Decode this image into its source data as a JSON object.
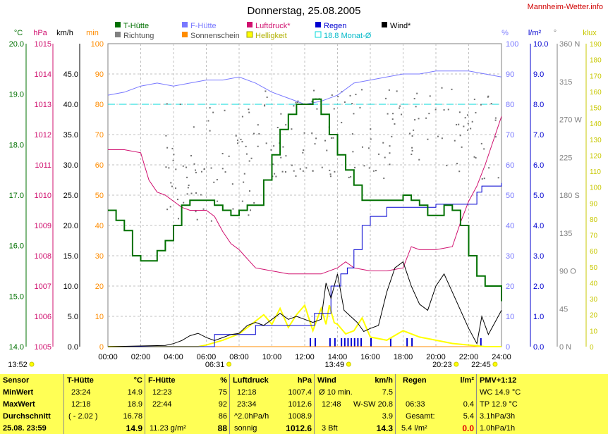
{
  "title": "Donnerstag, 25.08.2005",
  "site": "Mannheim-Wetter.info",
  "colors": {
    "temp": "#007000",
    "humid": "#7878ff",
    "pressure": "#d0106f",
    "rain": "#0000d0",
    "wind": "#000000",
    "direction": "#707070",
    "sun": "#ff8c00",
    "light": "#ffff00",
    "avg": "#00d8d8",
    "grid": "#b0b0b0",
    "table_bg": "#ffff55"
  },
  "legend": [
    {
      "label": "T-Hütte",
      "color": "#007000"
    },
    {
      "label": "F-Hütte",
      "color": "#7878ff"
    },
    {
      "label": "Luftdruck*",
      "color": "#d0106f"
    },
    {
      "label": "Regen",
      "color": "#0000d0"
    },
    {
      "label": "Wind*",
      "color": "#000000"
    },
    {
      "label": "Richtung",
      "color": "#808080"
    },
    {
      "label": "Sonnenschein",
      "color": "#ff8c00"
    },
    {
      "label": "Helligkeit",
      "color": "#ffff00"
    },
    {
      "label": "18.8 Monat-Ø",
      "color": "#00d8d8"
    }
  ],
  "axis_units": [
    "°C",
    "hPa",
    "km/h",
    "min",
    "%",
    "l/m²",
    "°",
    "klux"
  ],
  "axes": {
    "temp": [
      "20.0",
      "19.0",
      "18.0",
      "17.0",
      "16.0",
      "15.0",
      "14.0"
    ],
    "hpa": [
      "1015",
      "1014",
      "1013",
      "1012",
      "1011",
      "1010",
      "1009",
      "1008",
      "1007",
      "1006",
      "1005"
    ],
    "kmh": [
      "45.0",
      "40.0",
      "35.0",
      "30.0",
      "25.0",
      "20.0",
      "15.0",
      "10.0",
      "5.0",
      "0.0"
    ],
    "min": [
      "100",
      "90",
      "80",
      "70",
      "60",
      "50",
      "40",
      "30",
      "20",
      "10",
      "0"
    ],
    "pct": [
      "100",
      "90",
      "80",
      "70",
      "60",
      "50",
      "40",
      "30",
      "20",
      "10",
      "0"
    ],
    "lm2": [
      "10.0",
      "9.0",
      "8.0",
      "7.0",
      "6.0",
      "5.0",
      "4.0",
      "3.0",
      "2.0",
      "1.0",
      "0.0"
    ],
    "deg": [
      "360 N",
      "315",
      "270 W",
      "225",
      "180 S",
      "135",
      "90  O",
      "45",
      "0  N"
    ],
    "klux": [
      "190",
      "180",
      "170",
      "160",
      "150",
      "140",
      "130",
      "120",
      "110",
      "100",
      "90",
      "80",
      "70",
      "60",
      "50",
      "40",
      "30",
      "20",
      "10",
      "0"
    ]
  },
  "x_ticks": [
    "00:00",
    "02:00",
    "04:00",
    "06:00",
    "08:00",
    "10:00",
    "12:00",
    "14:00",
    "16:00",
    "18:00",
    "20:00",
    "22:00",
    "24:00"
  ],
  "time_marks": [
    {
      "label": "13:52",
      "hour": 0.3
    },
    {
      "label": "06:31",
      "hour": 6.52
    },
    {
      "label": "13:49",
      "hour": 13.82
    },
    {
      "label": "20:23",
      "hour": 20.38
    },
    {
      "label": "22:45",
      "hour": 22.75
    }
  ],
  "chart_data": {
    "type": "line",
    "x_range": [
      0,
      24
    ],
    "series": [
      {
        "name": "T-Hütte",
        "unit": "°C",
        "ylim": [
          14,
          20
        ],
        "points": [
          [
            0,
            16.7
          ],
          [
            0.5,
            16.5
          ],
          [
            1,
            16.3
          ],
          [
            1.5,
            15.8
          ],
          [
            2,
            15.7
          ],
          [
            2.6,
            15.7
          ],
          [
            3,
            15.9
          ],
          [
            3.5,
            16.1
          ],
          [
            4,
            16.4
          ],
          [
            4.5,
            16.8
          ],
          [
            5,
            16.9
          ],
          [
            6,
            16.9
          ],
          [
            6.5,
            16.8
          ],
          [
            7,
            16.7
          ],
          [
            7.5,
            16.6
          ],
          [
            8,
            16.7
          ],
          [
            8.5,
            16.8
          ],
          [
            9,
            16.8
          ],
          [
            9.5,
            17.3
          ],
          [
            10,
            17.8
          ],
          [
            10.5,
            18.3
          ],
          [
            11,
            18.6
          ],
          [
            11.5,
            18.8
          ],
          [
            12,
            18.8
          ],
          [
            12.5,
            18.9
          ],
          [
            13,
            18.6
          ],
          [
            13.5,
            18.2
          ],
          [
            14,
            17.8
          ],
          [
            14.5,
            17.5
          ],
          [
            15,
            17.2
          ],
          [
            15.5,
            16.9
          ],
          [
            16,
            16.9
          ],
          [
            16.5,
            16.9
          ],
          [
            17,
            16.9
          ],
          [
            17.5,
            16.9
          ],
          [
            18,
            17.0
          ],
          [
            18.5,
            16.9
          ],
          [
            19,
            16.8
          ],
          [
            19.5,
            16.6
          ],
          [
            20,
            16.6
          ],
          [
            20.5,
            16.8
          ],
          [
            21,
            16.7
          ],
          [
            21.5,
            16.4
          ],
          [
            22,
            15.8
          ],
          [
            22.5,
            15.4
          ],
          [
            23,
            15.2
          ],
          [
            24,
            14.9
          ]
        ]
      },
      {
        "name": "F-Hütte",
        "unit": "%",
        "ylim": [
          0,
          100
        ],
        "points": [
          [
            0,
            83
          ],
          [
            1,
            84
          ],
          [
            2,
            86
          ],
          [
            3,
            87
          ],
          [
            4,
            86
          ],
          [
            5,
            87
          ],
          [
            6,
            88
          ],
          [
            7,
            88
          ],
          [
            8,
            89
          ],
          [
            9,
            87
          ],
          [
            10,
            84
          ],
          [
            11,
            82
          ],
          [
            12,
            80
          ],
          [
            13,
            81
          ],
          [
            14,
            83
          ],
          [
            15,
            87
          ],
          [
            16,
            88
          ],
          [
            17,
            89
          ],
          [
            18,
            90
          ],
          [
            19,
            90
          ],
          [
            20,
            91
          ],
          [
            21,
            91
          ],
          [
            22,
            91
          ],
          [
            23,
            90
          ],
          [
            24,
            89
          ]
        ]
      },
      {
        "name": "Luftdruck*",
        "unit": "hPa",
        "ylim": [
          1005,
          1015
        ],
        "points": [
          [
            0,
            1011.5
          ],
          [
            1,
            1011.5
          ],
          [
            2,
            1011.4
          ],
          [
            2.5,
            1010.5
          ],
          [
            3,
            1010.1
          ],
          [
            3.5,
            1010.0
          ],
          [
            4,
            1009.8
          ],
          [
            4.5,
            1009.6
          ],
          [
            5,
            1009.5
          ],
          [
            6,
            1009.5
          ],
          [
            6.5,
            1009.3
          ],
          [
            7,
            1008.8
          ],
          [
            7.5,
            1008.4
          ],
          [
            8,
            1008.2
          ],
          [
            8.5,
            1007.9
          ],
          [
            9,
            1007.6
          ],
          [
            10,
            1007.5
          ],
          [
            11,
            1007.4
          ],
          [
            12,
            1007.4
          ],
          [
            13,
            1007.4
          ],
          [
            14,
            1007.6
          ],
          [
            14.5,
            1007.8
          ],
          [
            15,
            1007.6
          ],
          [
            16,
            1007.5
          ],
          [
            17,
            1007.5
          ],
          [
            18,
            1007.6
          ],
          [
            18.5,
            1008.3
          ],
          [
            19,
            1008.2
          ],
          [
            20,
            1008.2
          ],
          [
            21,
            1008.3
          ],
          [
            21.5,
            1009.1
          ],
          [
            22,
            1009.8
          ],
          [
            22.5,
            1010.3
          ],
          [
            23,
            1011.0
          ],
          [
            23.5,
            1011.8
          ],
          [
            24,
            1012.6
          ]
        ]
      },
      {
        "name": "Regen",
        "unit": "l/m²",
        "ylim": [
          0,
          10
        ],
        "points": [
          [
            0,
            0
          ],
          [
            6.5,
            0
          ],
          [
            6.5,
            0.4
          ],
          [
            9,
            0.4
          ],
          [
            9,
            0.7
          ],
          [
            12.6,
            0.7
          ],
          [
            12.6,
            1.1
          ],
          [
            13.6,
            1.1
          ],
          [
            13.6,
            2.0
          ],
          [
            14.2,
            2.4
          ],
          [
            14.6,
            2.6
          ],
          [
            15,
            3.2
          ],
          [
            15.5,
            4.0
          ],
          [
            16,
            4.3
          ],
          [
            17,
            4.6
          ],
          [
            20,
            4.7
          ],
          [
            21,
            4.7
          ],
          [
            22,
            4.7
          ],
          [
            22.5,
            5.1
          ],
          [
            22.8,
            5.3
          ],
          [
            24,
            5.4
          ]
        ]
      },
      {
        "name": "Wind*",
        "unit": "km/h",
        "ylim": [
          0,
          50
        ],
        "points": [
          [
            0,
            0
          ],
          [
            3.5,
            0.2
          ],
          [
            4,
            0.5
          ],
          [
            4.5,
            1.0
          ],
          [
            5,
            1.8
          ],
          [
            5.5,
            2.2
          ],
          [
            6,
            1.5
          ],
          [
            6.5,
            1.0
          ],
          [
            7,
            1.5
          ],
          [
            7.5,
            2.0
          ],
          [
            8,
            2.2
          ],
          [
            8.5,
            3.5
          ],
          [
            9,
            4.0
          ],
          [
            9.5,
            3.5
          ],
          [
            10,
            4.5
          ],
          [
            10.5,
            5.5
          ],
          [
            11,
            4.5
          ],
          [
            11.5,
            5.0
          ],
          [
            12,
            4.5
          ],
          [
            12.5,
            4.0
          ],
          [
            13,
            4.5
          ],
          [
            13.3,
            10.5
          ],
          [
            13.6,
            8.0
          ],
          [
            14,
            12.0
          ],
          [
            14.4,
            6.0
          ],
          [
            14.8,
            5.0
          ],
          [
            15.2,
            4.0
          ],
          [
            15.6,
            2.5
          ],
          [
            16,
            3.0
          ],
          [
            16.5,
            3.5
          ],
          [
            17,
            9.0
          ],
          [
            17.5,
            13.0
          ],
          [
            18,
            14.0
          ],
          [
            18.5,
            10.0
          ],
          [
            19,
            7.0
          ],
          [
            19.5,
            6.0
          ],
          [
            20,
            10.0
          ],
          [
            20.5,
            12.0
          ],
          [
            21,
            9.0
          ],
          [
            21.5,
            6.0
          ],
          [
            22,
            3.0
          ],
          [
            22.5,
            0.5
          ],
          [
            22.8,
            5.0
          ],
          [
            23.2,
            2.0
          ],
          [
            23.6,
            4.0
          ],
          [
            24,
            6.0
          ]
        ]
      },
      {
        "name": "Helligkeit",
        "unit": "klux",
        "ylim": [
          0,
          190
        ],
        "points": [
          [
            0,
            0
          ],
          [
            5.5,
            0
          ],
          [
            6,
            1
          ],
          [
            7,
            4
          ],
          [
            8,
            8
          ],
          [
            9,
            16
          ],
          [
            9.5,
            20
          ],
          [
            10,
            14
          ],
          [
            10.5,
            24
          ],
          [
            11,
            12
          ],
          [
            11.5,
            20
          ],
          [
            12,
            26
          ],
          [
            12.5,
            10
          ],
          [
            13,
            24
          ],
          [
            13.3,
            14
          ],
          [
            13.5,
            26
          ],
          [
            13.8,
            15
          ],
          [
            14,
            14
          ],
          [
            14.5,
            8
          ],
          [
            15,
            10
          ],
          [
            15.5,
            18
          ],
          [
            16,
            6
          ],
          [
            17,
            4
          ],
          [
            18,
            10
          ],
          [
            19,
            6
          ],
          [
            20,
            4
          ],
          [
            21,
            2
          ],
          [
            22,
            1
          ],
          [
            23,
            0
          ],
          [
            24,
            0
          ]
        ]
      },
      {
        "name": "Sonnenschein",
        "unit": "min",
        "ylim": [
          0,
          100
        ],
        "points": [
          [
            0,
            0
          ],
          [
            24,
            0
          ]
        ]
      }
    ],
    "monthly_avg": {
      "label": "18.8 Monat-Ø",
      "value": 18.8
    },
    "rain_bars_hours": [
      12.3,
      12.6,
      13.5,
      13.8,
      14.2,
      14.4,
      14.6,
      14.8,
      15.0,
      15.2,
      15.4,
      16.0,
      17.2,
      18.2,
      18.5,
      22.7
    ]
  },
  "table": {
    "sensor": {
      "header": "Sensor",
      "rows": [
        "MinWert",
        "MaxWert",
        "Durchschnitt",
        "25.08. 23:59"
      ]
    },
    "thuette": {
      "header": "T-Hütte",
      "unit": "°C",
      "rows": [
        [
          "23:24",
          "14.9"
        ],
        [
          "12:18",
          "18.9"
        ],
        [
          "( - 2.02 )",
          "16.78"
        ],
        [
          "",
          "14.9"
        ]
      ]
    },
    "fhuette": {
      "header": "F-Hütte",
      "unit": "%",
      "rows": [
        [
          "12:23",
          "75"
        ],
        [
          "22:44",
          "92"
        ],
        [
          "",
          "86"
        ],
        [
          "11.23 g/m²",
          "88"
        ]
      ]
    },
    "luftdruck": {
      "header": "Luftdruck",
      "unit": "hPa",
      "rows": [
        [
          "12:18",
          "1007.4"
        ],
        [
          "23:34",
          "1012.6"
        ],
        [
          "^2.0hPa/h",
          "1008.9"
        ],
        [
          "sonnig",
          "1012.6"
        ]
      ]
    },
    "wind": {
      "header": "Wind",
      "unit": "km/h",
      "rows": [
        [
          "Ø 10 min.",
          "7.5"
        ],
        [
          "12:48",
          "W-SW 20.8"
        ],
        [
          "",
          "3.9"
        ],
        [
          "3 Bft",
          "14.3"
        ]
      ]
    },
    "regen": {
      "header": "Regen",
      "unit": "l/m²",
      "rows": [
        [
          "",
          "",
          ""
        ],
        [
          "06:33",
          "",
          "0.4"
        ],
        [
          "Gesamt:",
          "",
          "5.4"
        ],
        [
          "5.4 l/m²",
          "",
          "0.0"
        ]
      ]
    },
    "pmv": {
      "header": "PMV+1:12",
      "rows": [
        "WC 14.9 °C",
        "TP 12.9 °C",
        "3.1hPa/3h",
        "1.0hPa/1h"
      ]
    }
  },
  "bottom_left_time": "13:52"
}
